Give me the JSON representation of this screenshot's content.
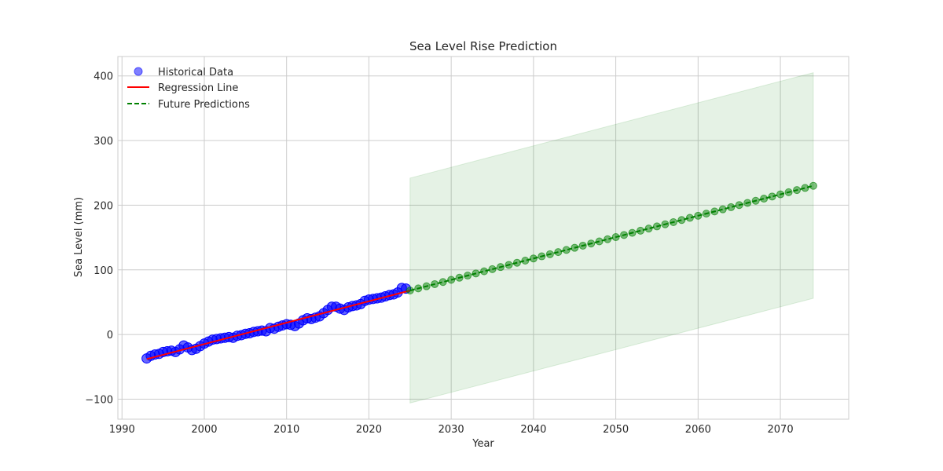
{
  "chart_data": {
    "type": "scatter",
    "title": "Sea Level Rise Prediction",
    "xlabel": "Year",
    "ylabel": "Sea Level (mm)",
    "xlim": [
      1989.5,
      2078.3
    ],
    "ylim": [
      -131,
      430
    ],
    "xticks": [
      1990,
      2000,
      2010,
      2020,
      2030,
      2040,
      2050,
      2060,
      2070
    ],
    "yticks": [
      -100,
      0,
      100,
      200,
      300,
      400
    ],
    "ytick_labels": [
      "−100",
      "0",
      "100",
      "200",
      "300",
      "400"
    ],
    "grid": true,
    "legend_position": "upper-left",
    "colors": {
      "historical": "#0000ff",
      "regression": "#ff0000",
      "future": "#008000",
      "band": "#008000",
      "grid": "#cccccc",
      "frame": "#cccccc"
    },
    "historical": {
      "name": "Historical Data",
      "x": [
        1993.0,
        1993.5,
        1994.0,
        1994.5,
        1995.0,
        1995.5,
        1996.0,
        1996.5,
        1997.0,
        1997.5,
        1998.0,
        1998.5,
        1999.0,
        1999.5,
        2000.0,
        2000.5,
        2001.0,
        2001.5,
        2002.0,
        2002.5,
        2003.0,
        2003.5,
        2004.0,
        2004.5,
        2005.0,
        2005.5,
        2006.0,
        2006.5,
        2007.0,
        2007.5,
        2008.0,
        2008.5,
        2009.0,
        2009.5,
        2010.0,
        2010.5,
        2011.0,
        2011.5,
        2012.0,
        2012.5,
        2013.0,
        2013.5,
        2014.0,
        2014.5,
        2015.0,
        2015.5,
        2016.0,
        2016.5,
        2017.0,
        2017.5,
        2018.0,
        2018.5,
        2019.0,
        2019.5,
        2020.0,
        2020.5,
        2021.0,
        2021.5,
        2022.0,
        2022.5,
        2023.0,
        2023.5,
        2024.0,
        2024.5
      ],
      "y": [
        -37,
        -33,
        -31,
        -30,
        -27,
        -26,
        -25,
        -27,
        -23,
        -17,
        -20,
        -24,
        -22,
        -18,
        -14,
        -11,
        -8,
        -7,
        -6,
        -5,
        -4,
        -5,
        -2,
        -1,
        1,
        2,
        4,
        5,
        6,
        5,
        10,
        9,
        12,
        14,
        16,
        15,
        13,
        17,
        22,
        25,
        24,
        26,
        28,
        33,
        38,
        43,
        43,
        40,
        38,
        42,
        44,
        45,
        47,
        52,
        54,
        55,
        56,
        57,
        59,
        61,
        62,
        65,
        72,
        71
      ]
    },
    "regression": {
      "name": "Regression Line",
      "x": [
        1993,
        2025
      ],
      "y": [
        -38,
        68
      ]
    },
    "future": {
      "name": "Future Predictions",
      "x_start": 2025,
      "x_end": 2074,
      "y_start": 68,
      "y_end": 230
    },
    "prediction_band": {
      "x": [
        2025,
        2074
      ],
      "upper": [
        242,
        405
      ],
      "lower": [
        -106,
        56
      ]
    }
  }
}
